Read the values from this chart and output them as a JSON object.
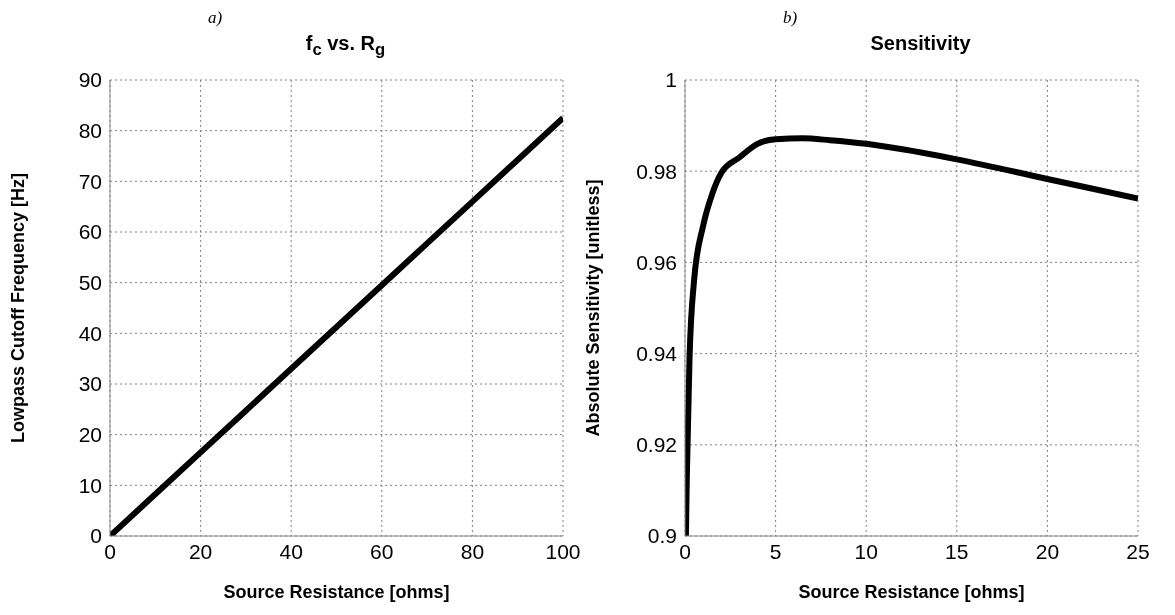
{
  "chart_data": [
    {
      "type": "line",
      "title": "f$_{c}$ vs. R$_{g}$",
      "xlabel": "Source Resistance [ohms]",
      "ylabel": "Lowpass Cutoff Frequency [Hz]",
      "annotations": [
        "a)"
      ],
      "x": [
        0,
        20,
        40,
        60,
        80,
        100
      ],
      "series": [
        {
          "color": "#000000",
          "values": [
            0,
            16.5,
            33,
            49.5,
            66,
            82.5
          ]
        }
      ],
      "xlim": [
        0,
        100
      ],
      "xticks": [
        0,
        20,
        40,
        60,
        80,
        100
      ],
      "ylim": [
        0,
        90
      ],
      "yticks": [
        0,
        10,
        20,
        30,
        40,
        50,
        60,
        70,
        80,
        90
      ],
      "grid": true,
      "legend": false
    },
    {
      "type": "line",
      "title": "Sensitivity",
      "xlabel": "Source Resistance [ohms]",
      "ylabel": "Absolute Sensitivity [unitless]",
      "annotations": [
        "b)"
      ],
      "x": [
        0.05,
        0.1,
        0.25,
        0.5,
        1,
        1.5,
        2,
        3,
        4,
        5,
        6.5,
        8,
        10,
        12,
        15,
        20,
        25
      ],
      "series": [
        {
          "color": "#000000",
          "values": [
            0.9,
            0.913,
            0.939,
            0.956,
            0.968,
            0.975,
            0.9796,
            0.983,
            0.986,
            0.987,
            0.9872,
            0.9868,
            0.986,
            0.9848,
            0.9826,
            0.9783,
            0.974
          ]
        }
      ],
      "xlim": [
        0,
        25
      ],
      "xticks": [
        0,
        5,
        10,
        15,
        20,
        25
      ],
      "ylim": [
        0.9,
        1
      ],
      "yticks": [
        0.9,
        0.92,
        0.94,
        0.96,
        0.98,
        1
      ],
      "grid": true,
      "legend": false
    }
  ]
}
